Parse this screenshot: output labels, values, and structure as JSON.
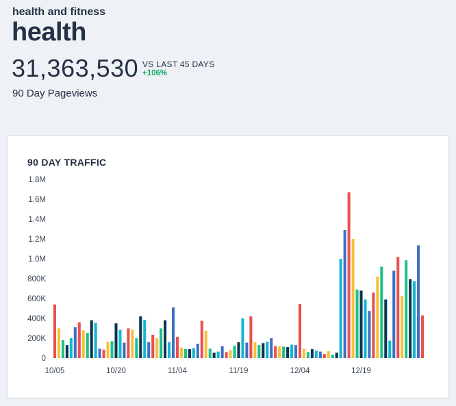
{
  "header": {
    "category": "health and fitness",
    "site_name": "health",
    "pageviews_total": "31,363,530",
    "comparison_label": "VS LAST 45 DAYS",
    "comparison_change": "+106%",
    "metric_label": "90 Day Pageviews"
  },
  "colors": {
    "positive": "#1aa86a",
    "palette": [
      "#e8514f",
      "#f8c03b",
      "#1ec08b",
      "#0d3550",
      "#12b6cf",
      "#3e6fc3"
    ]
  },
  "chart_data": {
    "type": "bar",
    "title": "90 DAY TRAFFIC",
    "ylim": [
      0,
      1800000
    ],
    "yticks": [
      {
        "value": 0,
        "label": "0"
      },
      {
        "value": 200000,
        "label": "200K"
      },
      {
        "value": 400000,
        "label": "400K"
      },
      {
        "value": 600000,
        "label": "600K"
      },
      {
        "value": 800000,
        "label": "800K"
      },
      {
        "value": 1000000,
        "label": "1.0M"
      },
      {
        "value": 1200000,
        "label": "1.2M"
      },
      {
        "value": 1400000,
        "label": "1.4M"
      },
      {
        "value": 1600000,
        "label": "1.6M"
      },
      {
        "value": 1800000,
        "label": "1.8M"
      }
    ],
    "xtick_labels": [
      {
        "index": 0,
        "label": "10/05"
      },
      {
        "index": 15,
        "label": "10/20"
      },
      {
        "index": 30,
        "label": "11/04"
      },
      {
        "index": 45,
        "label": "11/19"
      },
      {
        "index": 60,
        "label": "12/04"
      },
      {
        "index": 75,
        "label": "12/19"
      }
    ],
    "grid": false,
    "legend": "none",
    "values": [
      540000,
      300000,
      180000,
      130000,
      200000,
      310000,
      360000,
      280000,
      255000,
      380000,
      355000,
      95000,
      85000,
      165000,
      170000,
      350000,
      285000,
      155000,
      300000,
      285000,
      200000,
      420000,
      385000,
      160000,
      235000,
      200000,
      300000,
      380000,
      160000,
      510000,
      215000,
      105000,
      90000,
      90000,
      100000,
      145000,
      375000,
      275000,
      95000,
      55000,
      65000,
      120000,
      60000,
      80000,
      125000,
      160000,
      400000,
      155000,
      420000,
      160000,
      130000,
      150000,
      165000,
      200000,
      120000,
      120000,
      115000,
      110000,
      135000,
      130000,
      545000,
      95000,
      60000,
      90000,
      75000,
      65000,
      40000,
      70000,
      35000,
      55000,
      1000000,
      1290000,
      1670000,
      1200000,
      690000,
      680000,
      590000,
      475000,
      660000,
      820000,
      920000,
      590000,
      175000,
      880000,
      1020000,
      625000,
      985000,
      795000,
      775000,
      1135000,
      430000
    ]
  }
}
